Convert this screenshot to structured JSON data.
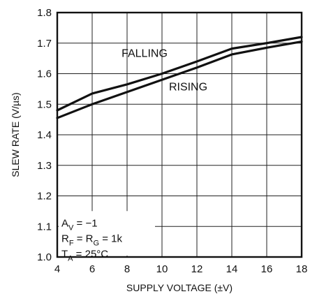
{
  "chart_data": {
    "type": "line",
    "xlabel": "SUPPLY VOLTAGE (±V)",
    "ylabel": "SLEW RATE (V/µs)",
    "xlim": [
      4,
      18
    ],
    "ylim": [
      1.0,
      1.8
    ],
    "xticks": [
      "4",
      "6",
      "8",
      "10",
      "12",
      "14",
      "16",
      "18"
    ],
    "yticks": [
      "1.0",
      "1.1",
      "1.2",
      "1.3",
      "1.4",
      "1.5",
      "1.6",
      "1.7",
      "1.8"
    ],
    "grid": true,
    "series": [
      {
        "name": "FALLING",
        "x": [
          4,
          6,
          8,
          10,
          12,
          14,
          16,
          18
        ],
        "y": [
          1.48,
          1.535,
          1.565,
          1.6,
          1.64,
          1.682,
          1.7,
          1.72
        ]
      },
      {
        "name": "RISING",
        "x": [
          4,
          6,
          8,
          10,
          12,
          14,
          16,
          18
        ],
        "y": [
          1.455,
          1.5,
          1.54,
          1.58,
          1.62,
          1.663,
          1.685,
          1.705
        ]
      }
    ],
    "annotations": [
      {
        "base": "A",
        "sub": "V",
        "rest": " = −1"
      },
      {
        "base": "R",
        "sub": "F",
        "mid": " = R",
        "sub2": "G",
        "rest": " = 1k"
      },
      {
        "base": "T",
        "sub": "A",
        "rest": " = 25°C"
      }
    ]
  }
}
